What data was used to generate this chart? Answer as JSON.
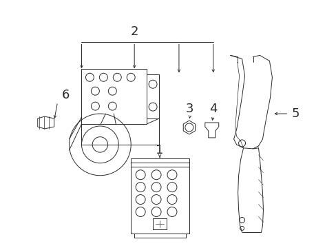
{
  "bg_color": "#ffffff",
  "line_color": "#2a2a2a",
  "lw": 0.7,
  "figsize": [
    4.89,
    3.6
  ],
  "dpi": 100
}
